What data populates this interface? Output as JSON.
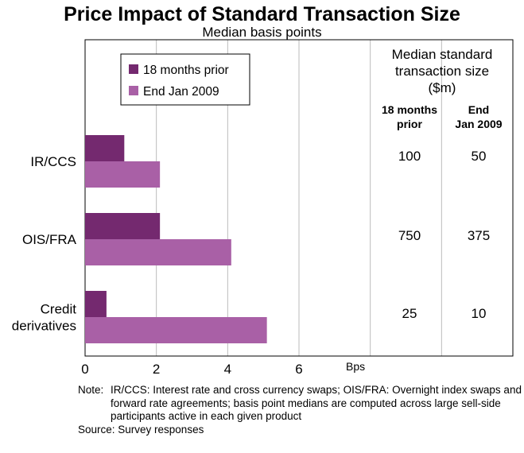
{
  "chart_data": {
    "type": "bar",
    "title": "Price Impact of Standard Transaction Size",
    "subtitle": "Median basis points",
    "xlabel": "Bps",
    "xlim": [
      0,
      12
    ],
    "x_ticks": [
      "0",
      "2",
      "4",
      "6"
    ],
    "categories": [
      {
        "lines": [
          "IR/CCS"
        ]
      },
      {
        "lines": [
          "OIS/FRA"
        ]
      },
      {
        "lines": [
          "Credit",
          "derivatives"
        ]
      }
    ],
    "series": [
      {
        "name": "18 months prior",
        "color": "#74296f",
        "values": [
          1.1,
          2.1,
          0.6
        ]
      },
      {
        "name": "End Jan 2009",
        "color": "#a960a6",
        "values": [
          2.1,
          4.1,
          5.1
        ]
      }
    ],
    "legend_position": "top-left",
    "grid": true,
    "table": {
      "header": [
        "Median standard",
        "transaction size",
        "($m)"
      ],
      "columns": [
        {
          "lines": [
            "18 months",
            "prior"
          ],
          "values": [
            "100",
            "750",
            "25"
          ]
        },
        {
          "lines": [
            "End",
            "Jan 2009"
          ],
          "values": [
            "50",
            "375",
            "10"
          ]
        }
      ]
    }
  },
  "footer": {
    "note_label": "Note:",
    "note_text": "IR/CCS: Interest rate and cross currency swaps; OIS/FRA: Overnight index swaps and forward rate agreements; basis point medians are computed across large sell-side participants active in each given product",
    "source": "Source: Survey responses"
  }
}
